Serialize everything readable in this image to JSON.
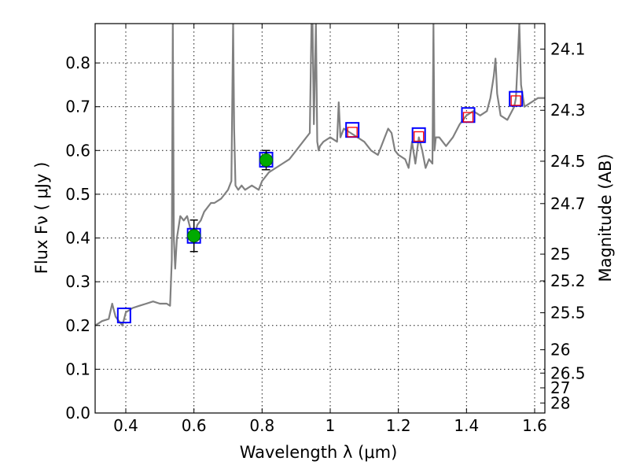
{
  "chart_data": {
    "type": "line",
    "xlabel": "Wavelength  λ (μm)",
    "ylabel": "Flux  Fν  ( μJy )",
    "y2label": "Magnitude (AB)",
    "xlim": [
      0.31,
      1.63
    ],
    "ylim": [
      0.0,
      0.89
    ],
    "grid": true,
    "x_ticks": [
      0.4,
      0.6,
      0.8,
      1.0,
      1.2,
      1.4,
      1.6
    ],
    "x_tick_labels": [
      "0.4",
      "0.6",
      "0.8",
      "1",
      "1.2",
      "1.4",
      "1.6"
    ],
    "y_ticks": [
      0.0,
      0.1,
      0.2,
      0.3,
      0.4,
      0.5,
      0.6,
      0.7,
      0.8
    ],
    "y_tick_labels": [
      "0.0",
      "0.1",
      "0.2",
      "0.3",
      "0.4",
      "0.5",
      "0.6",
      "0.7",
      "0.8"
    ],
    "y2_ticks": [
      {
        "mag": 24.1,
        "label": "24.1"
      },
      {
        "mag": 24.3,
        "label": "24.3"
      },
      {
        "mag": 24.5,
        "label": "24.5"
      },
      {
        "mag": 24.7,
        "label": "24.7"
      },
      {
        "mag": 25.0,
        "label": "25"
      },
      {
        "mag": 25.2,
        "label": "25.2"
      },
      {
        "mag": 25.5,
        "label": "25.5"
      },
      {
        "mag": 26.0,
        "label": "26"
      },
      {
        "mag": 26.5,
        "label": "26.5"
      },
      {
        "mag": 27.0,
        "label": "27"
      },
      {
        "mag": 28.0,
        "label": "28"
      }
    ],
    "colors": {
      "spectrum": "#808080",
      "model_box": "#0000ff",
      "synthetic_box": "#ff0000",
      "observed_point": "#00aa00",
      "errorbar": "#000000"
    },
    "spectrum": {
      "x": [
        0.31,
        0.33,
        0.35,
        0.36,
        0.37,
        0.38,
        0.39,
        0.4,
        0.42,
        0.44,
        0.46,
        0.48,
        0.5,
        0.52,
        0.53,
        0.535,
        0.538,
        0.541,
        0.545,
        0.55,
        0.56,
        0.57,
        0.58,
        0.59,
        0.6,
        0.61,
        0.62,
        0.63,
        0.64,
        0.65,
        0.66,
        0.68,
        0.7,
        0.71,
        0.715,
        0.718,
        0.722,
        0.73,
        0.74,
        0.75,
        0.77,
        0.79,
        0.8,
        0.82,
        0.84,
        0.86,
        0.88,
        0.9,
        0.92,
        0.94,
        0.945,
        0.948,
        0.952,
        0.958,
        0.962,
        0.966,
        0.97,
        0.98,
        1.0,
        1.02,
        1.025,
        1.03,
        1.04,
        1.06,
        1.08,
        1.1,
        1.12,
        1.14,
        1.16,
        1.17,
        1.18,
        1.19,
        1.2,
        1.22,
        1.23,
        1.24,
        1.25,
        1.26,
        1.27,
        1.28,
        1.29,
        1.3,
        1.303,
        1.306,
        1.31,
        1.32,
        1.34,
        1.36,
        1.38,
        1.4,
        1.42,
        1.44,
        1.46,
        1.47,
        1.48,
        1.485,
        1.49,
        1.5,
        1.52,
        1.54,
        1.545,
        1.55,
        1.555,
        1.56,
        1.57,
        1.59,
        1.61,
        1.63
      ],
      "y": [
        0.2,
        0.21,
        0.215,
        0.25,
        0.22,
        0.21,
        0.2,
        0.23,
        0.24,
        0.245,
        0.25,
        0.255,
        0.25,
        0.25,
        0.245,
        0.35,
        0.89,
        0.4,
        0.33,
        0.4,
        0.45,
        0.44,
        0.45,
        0.42,
        0.4,
        0.43,
        0.44,
        0.46,
        0.47,
        0.48,
        0.48,
        0.49,
        0.51,
        0.53,
        0.89,
        0.65,
        0.52,
        0.51,
        0.52,
        0.51,
        0.52,
        0.51,
        0.53,
        0.55,
        0.56,
        0.57,
        0.58,
        0.6,
        0.62,
        0.64,
        0.89,
        0.89,
        0.66,
        0.89,
        0.62,
        0.6,
        0.61,
        0.62,
        0.63,
        0.62,
        0.71,
        0.63,
        0.65,
        0.64,
        0.63,
        0.62,
        0.6,
        0.59,
        0.63,
        0.65,
        0.64,
        0.6,
        0.59,
        0.58,
        0.56,
        0.62,
        0.57,
        0.63,
        0.6,
        0.56,
        0.58,
        0.57,
        0.89,
        0.6,
        0.63,
        0.63,
        0.61,
        0.63,
        0.66,
        0.68,
        0.69,
        0.68,
        0.69,
        0.72,
        0.77,
        0.81,
        0.73,
        0.68,
        0.67,
        0.7,
        0.72,
        0.8,
        0.89,
        0.75,
        0.7,
        0.71,
        0.72,
        0.72
      ]
    },
    "series": [
      {
        "kind": "model_boxes",
        "x": [
          0.395,
          0.6,
          0.812,
          1.065,
          1.26,
          1.405,
          1.545
        ],
        "y": [
          0.223,
          0.405,
          0.579,
          0.647,
          0.635,
          0.681,
          0.718
        ]
      },
      {
        "kind": "synthetic_boxes",
        "x": [
          1.065,
          1.26,
          1.405,
          1.545
        ],
        "y": [
          0.642,
          0.632,
          0.676,
          0.714
        ]
      },
      {
        "kind": "observed_points",
        "x": [
          0.6,
          0.812
        ],
        "y": [
          0.405,
          0.578
        ],
        "yerr": [
          0.036,
          0.022
        ]
      }
    ]
  }
}
